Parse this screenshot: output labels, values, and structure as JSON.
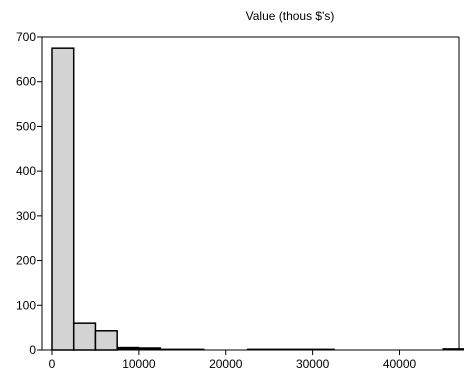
{
  "chart_data": {
    "type": "bar",
    "title": "Value (thous $'s)",
    "xlabel": "",
    "ylabel": "",
    "xlim": [
      0,
      48000
    ],
    "ylim": [
      0,
      700
    ],
    "x_ticks": [
      0,
      10000,
      20000,
      30000,
      40000
    ],
    "y_ticks": [
      0,
      100,
      200,
      300,
      400,
      500,
      600,
      700
    ],
    "x_tick_labels": [
      "0",
      "10000",
      "20000",
      "30000",
      "40000"
    ],
    "y_tick_labels": [
      "0",
      "100",
      "200",
      "300",
      "400",
      "500",
      "600",
      "700"
    ],
    "bar_color": "#d3d3d3",
    "bin_width": 2500,
    "bins": [
      {
        "start": 0,
        "end": 2500,
        "value": 675
      },
      {
        "start": 2500,
        "end": 5000,
        "value": 60
      },
      {
        "start": 5000,
        "end": 7500,
        "value": 43
      },
      {
        "start": 7500,
        "end": 10000,
        "value": 6
      },
      {
        "start": 10000,
        "end": 12500,
        "value": 5
      },
      {
        "start": 12500,
        "end": 15000,
        "value": 2
      },
      {
        "start": 15000,
        "end": 17500,
        "value": 2
      },
      {
        "start": 17500,
        "end": 20000,
        "value": 0
      },
      {
        "start": 20000,
        "end": 22500,
        "value": 0
      },
      {
        "start": 22500,
        "end": 25000,
        "value": 2
      },
      {
        "start": 25000,
        "end": 27500,
        "value": 2
      },
      {
        "start": 27500,
        "end": 30000,
        "value": 2
      },
      {
        "start": 30000,
        "end": 32500,
        "value": 2
      },
      {
        "start": 32500,
        "end": 35000,
        "value": 0
      },
      {
        "start": 35000,
        "end": 37500,
        "value": 0
      },
      {
        "start": 37500,
        "end": 40000,
        "value": 0
      },
      {
        "start": 40000,
        "end": 42500,
        "value": 0
      },
      {
        "start": 42500,
        "end": 45000,
        "value": 0
      },
      {
        "start": 45000,
        "end": 47500,
        "value": 3
      }
    ]
  }
}
